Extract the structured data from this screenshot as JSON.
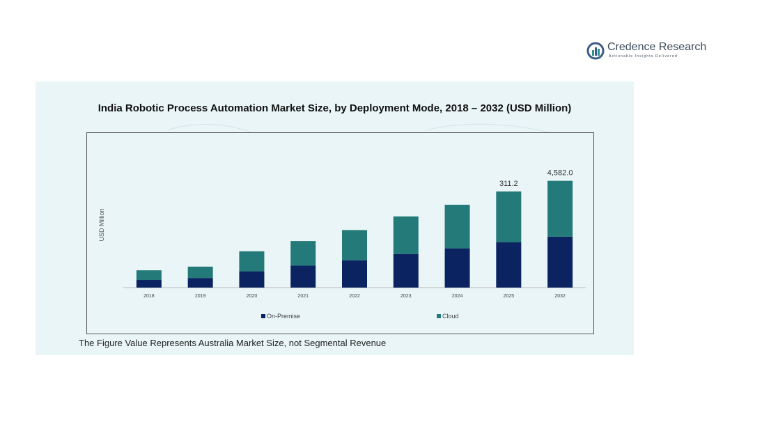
{
  "brand": {
    "name": "Credence Research",
    "tagline": "Actionable Insights Delivered",
    "colors": {
      "mark_blue": "#3b5d8a",
      "mark_teal": "#2f8f8f",
      "text": "#3a4a5c"
    }
  },
  "chart_data": {
    "type": "bar",
    "stacked": true,
    "title": "India Robotic Process Automation Market Size, by Deployment Mode, 2018 – 2032 (USD Million)",
    "ylabel": "USD Million",
    "xlabel": "",
    "categories": [
      "2018",
      "2019",
      "2020",
      "2021",
      "2022",
      "2023",
      "2024",
      "2025",
      "2032"
    ],
    "series": [
      {
        "name": "On-Premise",
        "color": "#0b2461",
        "values": [
          230,
          290,
          490,
          660,
          820,
          1010,
          1180,
          1360,
          1530
        ]
      },
      {
        "name": "Cloud",
        "color": "#247a78",
        "values": [
          290,
          340,
          600,
          740,
          910,
          1130,
          1310,
          1530,
          1680
        ]
      }
    ],
    "data_labels": {
      "2025": "311.2",
      "2032": "4,582.0"
    },
    "ylim": [
      0,
      3600
    ],
    "grid": false,
    "legend_position": "bottom"
  },
  "footnote": "The Figure Value Represents Australia Market Size, not Segmental Revenue"
}
